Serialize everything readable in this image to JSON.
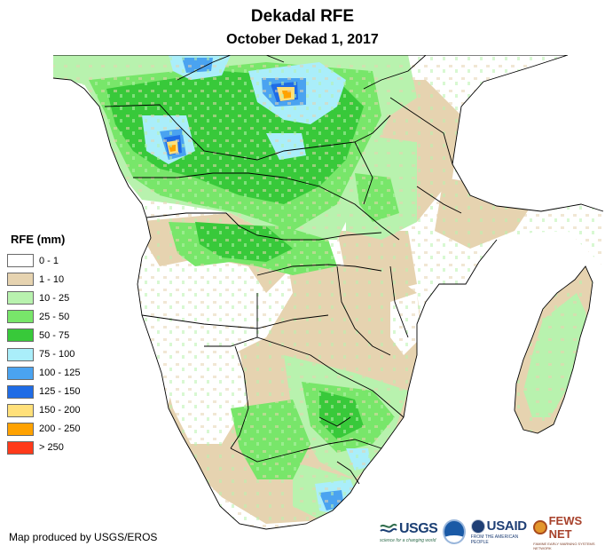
{
  "header": {
    "title": "Dekadal RFE",
    "subtitle": "October Dekad 1, 2017"
  },
  "legend": {
    "title": "RFE (mm)",
    "items": [
      {
        "label": "0 - 1",
        "color": "#ffffff"
      },
      {
        "label": "1 - 10",
        "color": "#e6d3b0"
      },
      {
        "label": "10 - 25",
        "color": "#b8f2ae"
      },
      {
        "label": "25 - 50",
        "color": "#78e66a"
      },
      {
        "label": "50 - 75",
        "color": "#38c93a"
      },
      {
        "label": "75 - 100",
        "color": "#aaeefa"
      },
      {
        "label": "100 - 125",
        "color": "#4aa3f0"
      },
      {
        "label": "125 - 150",
        "color": "#1f6ce6"
      },
      {
        "label": "150 - 200",
        "color": "#ffe07a"
      },
      {
        "label": "200 - 250",
        "color": "#ffa200"
      },
      {
        "label": "> 250",
        "color": "#ff3a1a"
      }
    ]
  },
  "credit": "Map produced by USGS/EROS",
  "logos": {
    "usgs": "USGS",
    "usgs_tagline": "science for a changing world",
    "usaid": "USAID",
    "usaid_tagline": "FROM THE AMERICAN PEOPLE",
    "fews": "FEWS NET",
    "fews_tagline": "FAMINE EARLY WARNING SYSTEMS NETWORK"
  }
}
